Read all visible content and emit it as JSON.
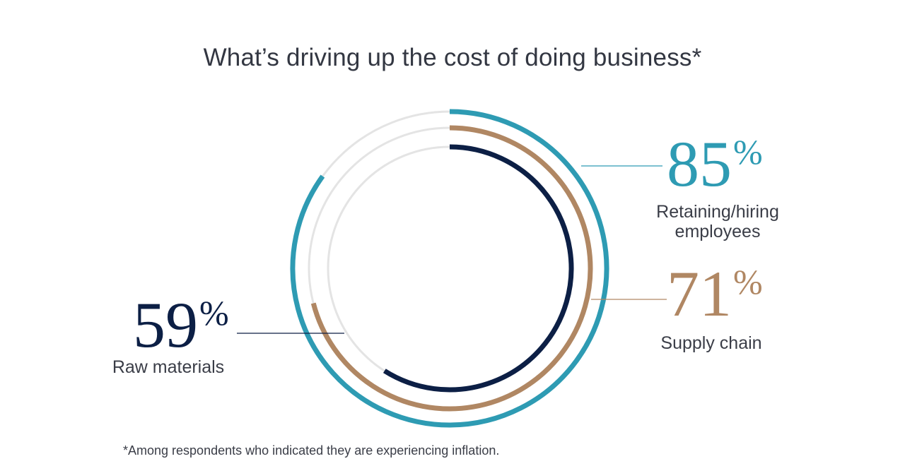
{
  "chart_data": {
    "type": "radial-bar",
    "title": "What’s driving up the cost of doing business*",
    "series": [
      {
        "label": "Retaining/hiring employees",
        "value": 85,
        "display": "85",
        "unit": "%",
        "color": "#2e9bb3"
      },
      {
        "label": "Supply chain",
        "value": 71,
        "display": "71",
        "unit": "%",
        "color": "#b08763"
      },
      {
        "label": "Raw materials",
        "value": 59,
        "display": "59",
        "unit": "%",
        "color": "#0c1f45"
      }
    ],
    "track_color": "#e4e4e4",
    "footnote": "*Among respondents who indicated they are experiencing inflation."
  }
}
